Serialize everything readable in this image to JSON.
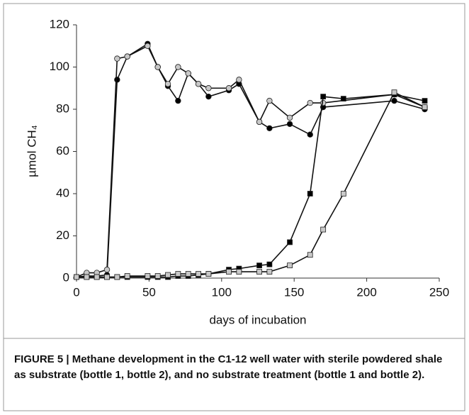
{
  "chart_data": {
    "type": "line",
    "xlabel": "days of incubation",
    "ylabel": "µmol CH₄",
    "xlim": [
      0,
      250
    ],
    "xticks": [
      0,
      50,
      100,
      150,
      200,
      250
    ],
    "ylim": [
      0,
      120
    ],
    "yticks": [
      0,
      20,
      40,
      60,
      80,
      100,
      120
    ],
    "series": [
      {
        "color": "#000000",
        "marker": "circle",
        "x": [
          0,
          7,
          14,
          21,
          28,
          35,
          49,
          56,
          63,
          70,
          77,
          84,
          91,
          105,
          112,
          126,
          133,
          147,
          161,
          170,
          219,
          240
        ],
        "values": [
          0.5,
          1,
          1,
          1.5,
          94,
          105,
          111,
          100,
          91,
          84,
          97,
          92,
          86,
          89,
          92,
          74,
          71,
          73,
          68,
          81,
          84,
          80
        ]
      },
      {
        "color": "#c8c8c8",
        "marker": "circle",
        "x": [
          0,
          7,
          14,
          21,
          28,
          35,
          49,
          56,
          63,
          70,
          77,
          84,
          91,
          105,
          112,
          126,
          133,
          147,
          161,
          170,
          219,
          240
        ],
        "values": [
          0.5,
          2.5,
          2.5,
          4,
          104,
          105,
          110,
          100,
          92,
          100,
          97,
          92,
          90,
          90,
          94,
          74,
          84,
          76,
          83,
          83,
          87,
          81
        ]
      },
      {
        "color": "#000000",
        "marker": "square",
        "x": [
          0,
          7,
          14,
          21,
          28,
          35,
          49,
          56,
          63,
          70,
          77,
          84,
          91,
          105,
          112,
          126,
          133,
          147,
          161,
          170,
          184,
          219,
          240
        ],
        "values": [
          0.5,
          0.5,
          0.5,
          0.5,
          0.5,
          0.5,
          0.5,
          0.5,
          0.5,
          1,
          1,
          1.5,
          2,
          4,
          4.5,
          6,
          6.5,
          17,
          40,
          86,
          85,
          87,
          84
        ]
      },
      {
        "color": "#c8c8c8",
        "marker": "square",
        "x": [
          0,
          7,
          14,
          21,
          28,
          35,
          49,
          56,
          63,
          70,
          77,
          84,
          91,
          105,
          112,
          126,
          133,
          147,
          161,
          170,
          184,
          219,
          240
        ],
        "values": [
          0.5,
          0.5,
          0.5,
          0.5,
          0.5,
          1,
          1,
          1,
          1.5,
          2,
          2,
          2,
          2,
          3,
          3,
          3,
          3,
          6,
          11,
          23,
          40,
          88,
          81
        ]
      }
    ]
  },
  "caption": "FIGURE 5 | Methane development in the C1-12 well water with sterile powdered shale as substrate (bottle 1, bottle 2), and no substrate treatment (bottle 1 and bottle 2)."
}
